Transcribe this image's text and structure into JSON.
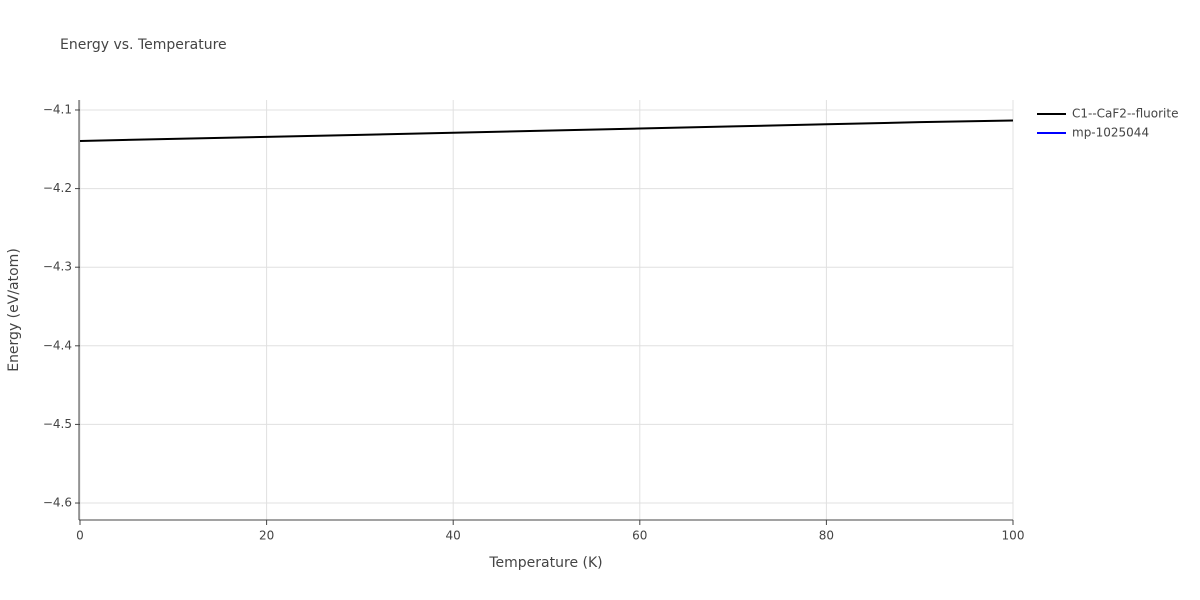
{
  "chart_data": {
    "type": "line",
    "title": "Energy vs. Temperature",
    "x_label": "Temperature (K)",
    "y_label": "Energy (eV/atom)",
    "x": [
      0,
      10,
      20,
      30,
      40,
      50,
      60,
      70,
      80,
      90,
      100
    ],
    "series": [
      {
        "name": "C1--CaF2--fluorite",
        "color": "#000000",
        "values": [
          -4.1394,
          -4.1368,
          -4.1342,
          -4.1316,
          -4.129,
          -4.1263,
          -4.1236,
          -4.1209,
          -4.1182,
          -4.1155,
          -4.1133
        ]
      },
      {
        "name": "mp-1025044",
        "color": "#0000ff",
        "values": [
          null,
          null,
          null,
          null,
          null,
          null,
          null,
          null,
          null,
          null,
          null
        ]
      }
    ],
    "xlim": [
      0,
      100
    ],
    "xticks": [
      0,
      20,
      40,
      60,
      80,
      100
    ],
    "ylim": [
      -4.6216,
      -4.0873
    ],
    "yticks": [
      {
        "value": -4.6,
        "label": "−4.6"
      },
      {
        "value": -4.5,
        "label": "−4.5"
      },
      {
        "value": -4.4,
        "label": "−4.4"
      },
      {
        "value": -4.3,
        "label": "−4.3"
      },
      {
        "value": -4.2,
        "label": "−4.2"
      },
      {
        "value": -4.1,
        "label": "−4.1"
      }
    ],
    "grid": true
  }
}
